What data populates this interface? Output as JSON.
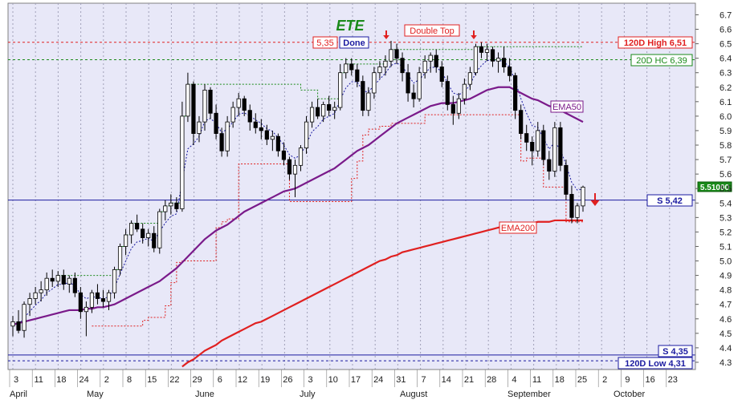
{
  "chart_data": {
    "type": "candlestick",
    "title": "ETE",
    "colors": {
      "background": "#e8e8f8",
      "up": "#ffffff",
      "down": "#000000",
      "ema50": "#7a1a8a",
      "ema200": "#e02020",
      "support": "#1a1aa0",
      "resistance": "#e02020",
      "hc20": "#1a8a1a",
      "trail": "#1a1aa0",
      "stop": "#e02020"
    },
    "ylim": [
      4.25,
      6.78
    ],
    "y_ticks": [
      "6.7",
      "6.6",
      "6.5",
      "6.4",
      "6.3",
      "6.2",
      "6.1",
      "6.0",
      "5.9",
      "5.8",
      "5.7",
      "5.6",
      "5.5",
      "5.4",
      "5.3",
      "5.2",
      "5.1",
      "5.0",
      "4.9",
      "4.8",
      "4.7",
      "4.6",
      "4.5",
      "4.4",
      "4.3"
    ],
    "x_day_ticks": [
      "3",
      "11",
      "18",
      "24",
      "2",
      "8",
      "15",
      "22",
      "29",
      "6",
      "12",
      "19",
      "26",
      "3",
      "10",
      "17",
      "24",
      "31",
      "7",
      "14",
      "21",
      "28",
      "4",
      "11",
      "18",
      "25",
      "2",
      "9",
      "16",
      "23"
    ],
    "x_month_labels": [
      "April",
      "May",
      "June",
      "July",
      "August",
      "September",
      "October"
    ],
    "last_price": "5.51000",
    "annotations": {
      "double_top": "Double Top",
      "done": "Done",
      "stop_price": "5,35",
      "high_120d": "120D High 6,51",
      "hc_20d": "20D HC 6,39",
      "support": "S 5,42",
      "support2": "S 4,35",
      "low_120d": "120D Low 4,31",
      "ema50": "EMA50",
      "ema200": "EMA200"
    },
    "levels": {
      "high_120d": 6.51,
      "hc_20d": 6.39,
      "support": 5.42,
      "support2": 4.35,
      "low_120d": 4.31
    },
    "candles": [
      [
        4.55,
        4.62,
        4.48,
        4.58
      ],
      [
        4.58,
        4.66,
        4.5,
        4.52
      ],
      [
        4.52,
        4.72,
        4.47,
        4.7
      ],
      [
        4.7,
        4.78,
        4.62,
        4.74
      ],
      [
        4.74,
        4.82,
        4.7,
        4.78
      ],
      [
        4.78,
        4.86,
        4.72,
        4.8
      ],
      [
        4.8,
        4.92,
        4.76,
        4.88
      ],
      [
        4.88,
        4.94,
        4.82,
        4.86
      ],
      [
        4.86,
        4.93,
        4.82,
        4.9
      ],
      [
        4.9,
        4.94,
        4.8,
        4.84
      ],
      [
        4.84,
        4.9,
        4.78,
        4.88
      ],
      [
        4.88,
        4.92,
        4.75,
        4.78
      ],
      [
        4.78,
        4.82,
        4.6,
        4.65
      ],
      [
        4.65,
        4.72,
        4.48,
        4.68
      ],
      [
        4.68,
        4.8,
        4.64,
        4.78
      ],
      [
        4.78,
        4.84,
        4.7,
        4.74
      ],
      [
        4.74,
        4.8,
        4.68,
        4.72
      ],
      [
        4.72,
        4.8,
        4.66,
        4.78
      ],
      [
        4.78,
        4.96,
        4.74,
        4.94
      ],
      [
        4.94,
        5.12,
        4.9,
        5.1
      ],
      [
        5.1,
        5.22,
        5.04,
        5.18
      ],
      [
        5.18,
        5.28,
        5.12,
        5.26
      ],
      [
        5.26,
        5.32,
        5.2,
        5.22
      ],
      [
        5.22,
        5.26,
        5.12,
        5.16
      ],
      [
        5.16,
        5.22,
        5.1,
        5.19
      ],
      [
        5.19,
        5.24,
        5.06,
        5.09
      ],
      [
        5.09,
        5.36,
        5.05,
        5.34
      ],
      [
        5.34,
        5.42,
        5.28,
        5.38
      ],
      [
        5.38,
        5.46,
        5.32,
        5.4
      ],
      [
        5.4,
        5.44,
        5.34,
        5.36
      ],
      [
        5.36,
        6.1,
        5.34,
        6.0
      ],
      [
        6.0,
        6.3,
        5.96,
        6.22
      ],
      [
        6.22,
        6.24,
        5.8,
        5.88
      ],
      [
        5.88,
        6.0,
        5.82,
        5.96
      ],
      [
        5.96,
        6.22,
        5.9,
        6.18
      ],
      [
        6.18,
        6.2,
        5.98,
        6.02
      ],
      [
        6.02,
        6.08,
        5.84,
        5.88
      ],
      [
        5.88,
        5.92,
        5.72,
        5.76
      ],
      [
        5.76,
        6.0,
        5.72,
        5.96
      ],
      [
        5.96,
        6.1,
        5.92,
        6.06
      ],
      [
        6.06,
        6.16,
        6.0,
        6.12
      ],
      [
        6.12,
        6.14,
        6.0,
        6.04
      ],
      [
        6.04,
        6.08,
        5.9,
        5.96
      ],
      [
        5.96,
        6.02,
        5.88,
        5.92
      ],
      [
        5.92,
        5.98,
        5.84,
        5.9
      ],
      [
        5.9,
        5.94,
        5.8,
        5.84
      ],
      [
        5.84,
        5.9,
        5.76,
        5.86
      ],
      [
        5.86,
        5.88,
        5.72,
        5.76
      ],
      [
        5.76,
        5.82,
        5.66,
        5.7
      ],
      [
        5.7,
        5.72,
        5.56,
        5.6
      ],
      [
        5.6,
        5.7,
        5.44,
        5.66
      ],
      [
        5.66,
        5.8,
        5.62,
        5.78
      ],
      [
        5.78,
        6.0,
        5.74,
        5.96
      ],
      [
        5.96,
        6.1,
        5.92,
        6.06
      ],
      [
        6.06,
        6.12,
        5.98,
        6.0
      ],
      [
        6.0,
        6.1,
        5.96,
        6.08
      ],
      [
        6.08,
        6.14,
        6.0,
        6.04
      ],
      [
        6.04,
        6.1,
        5.98,
        6.06
      ],
      [
        6.06,
        6.36,
        6.04,
        6.3
      ],
      [
        6.3,
        6.4,
        6.26,
        6.36
      ],
      [
        6.36,
        6.4,
        6.28,
        6.32
      ],
      [
        6.32,
        6.36,
        6.2,
        6.24
      ],
      [
        6.24,
        6.28,
        6.0,
        6.04
      ],
      [
        6.04,
        6.2,
        6.0,
        6.16
      ],
      [
        6.16,
        6.34,
        6.12,
        6.3
      ],
      [
        6.3,
        6.38,
        6.26,
        6.34
      ],
      [
        6.34,
        6.42,
        6.28,
        6.38
      ],
      [
        6.38,
        6.52,
        6.34,
        6.46
      ],
      [
        6.46,
        6.5,
        6.36,
        6.4
      ],
      [
        6.4,
        6.44,
        6.24,
        6.3
      ],
      [
        6.3,
        6.36,
        6.1,
        6.16
      ],
      [
        6.16,
        6.22,
        6.06,
        6.12
      ],
      [
        6.12,
        6.34,
        6.1,
        6.3
      ],
      [
        6.3,
        6.42,
        6.26,
        6.38
      ],
      [
        6.38,
        6.44,
        6.3,
        6.42
      ],
      [
        6.42,
        6.46,
        6.3,
        6.34
      ],
      [
        6.34,
        6.38,
        6.2,
        6.24
      ],
      [
        6.24,
        6.28,
        6.04,
        6.08
      ],
      [
        6.08,
        6.14,
        5.94,
        6.02
      ],
      [
        6.02,
        6.16,
        5.98,
        6.12
      ],
      [
        6.12,
        6.26,
        6.08,
        6.22
      ],
      [
        6.22,
        6.34,
        6.18,
        6.3
      ],
      [
        6.3,
        6.5,
        6.28,
        6.48
      ],
      [
        6.48,
        6.51,
        6.4,
        6.44
      ],
      [
        6.44,
        6.5,
        6.38,
        6.46
      ],
      [
        6.46,
        6.48,
        6.34,
        6.38
      ],
      [
        6.38,
        6.44,
        6.3,
        6.4
      ],
      [
        6.4,
        6.48,
        6.3,
        6.34
      ],
      [
        6.34,
        6.4,
        6.24,
        6.28
      ],
      [
        6.28,
        6.3,
        5.98,
        6.04
      ],
      [
        6.04,
        6.08,
        5.84,
        5.88
      ],
      [
        5.88,
        5.94,
        5.76,
        5.82
      ],
      [
        5.82,
        5.86,
        5.66,
        5.76
      ],
      [
        5.76,
        5.96,
        5.72,
        5.9
      ],
      [
        5.9,
        5.94,
        5.66,
        5.7
      ],
      [
        5.7,
        5.76,
        5.56,
        5.62
      ],
      [
        5.62,
        5.96,
        5.58,
        5.92
      ],
      [
        5.92,
        5.96,
        5.62,
        5.66
      ],
      [
        5.66,
        5.7,
        5.42,
        5.46
      ],
      [
        5.46,
        5.52,
        5.26,
        5.3
      ],
      [
        5.3,
        5.4,
        5.26,
        5.38
      ],
      [
        5.38,
        5.52,
        5.34,
        5.51
      ]
    ],
    "ema50": [
      4.56,
      4.57,
      4.58,
      4.59,
      4.6,
      4.61,
      4.62,
      4.63,
      4.64,
      4.65,
      4.66,
      4.66,
      4.66,
      4.67,
      4.67,
      4.68,
      4.68,
      4.69,
      4.7,
      4.72,
      4.74,
      4.76,
      4.78,
      4.8,
      4.82,
      4.84,
      4.86,
      4.89,
      4.92,
      4.95,
      4.99,
      5.03,
      5.07,
      5.11,
      5.15,
      5.18,
      5.21,
      5.23,
      5.25,
      5.28,
      5.31,
      5.34,
      5.36,
      5.38,
      5.4,
      5.42,
      5.44,
      5.46,
      5.48,
      5.49,
      5.5,
      5.52,
      5.54,
      5.56,
      5.58,
      5.6,
      5.62,
      5.64,
      5.67,
      5.7,
      5.73,
      5.76,
      5.78,
      5.8,
      5.83,
      5.86,
      5.89,
      5.92,
      5.95,
      5.97,
      5.99,
      6.01,
      6.03,
      6.05,
      6.07,
      6.08,
      6.09,
      6.09,
      6.09,
      6.1,
      6.11,
      6.12,
      6.14,
      6.16,
      6.18,
      6.19,
      6.2,
      6.2,
      6.2,
      6.18,
      6.16,
      6.14,
      6.12,
      6.11,
      6.09,
      6.07,
      6.06,
      6.04,
      6.02,
      6.0,
      5.98,
      5.96
    ],
    "ema200": [
      3.5,
      3.52,
      3.55,
      3.58,
      3.6,
      3.63,
      3.66,
      3.68,
      3.71,
      3.73,
      3.76,
      3.79,
      3.81,
      3.84,
      3.86,
      3.89,
      3.91,
      3.94,
      3.97,
      3.99,
      4.02,
      4.04,
      4.07,
      4.09,
      4.12,
      4.14,
      4.17,
      4.19,
      4.22,
      4.24,
      4.27,
      4.3,
      4.32,
      4.35,
      4.38,
      4.4,
      4.42,
      4.45,
      4.47,
      4.49,
      4.51,
      4.53,
      4.55,
      4.57,
      4.58,
      4.6,
      4.62,
      4.64,
      4.66,
      4.68,
      4.7,
      4.72,
      4.74,
      4.76,
      4.78,
      4.8,
      4.82,
      4.84,
      4.86,
      4.88,
      4.9,
      4.92,
      4.94,
      4.96,
      4.98,
      5.0,
      5.01,
      5.03,
      5.04,
      5.06,
      5.07,
      5.08,
      5.09,
      5.1,
      5.11,
      5.12,
      5.13,
      5.14,
      5.15,
      5.16,
      5.17,
      5.18,
      5.19,
      5.2,
      5.21,
      5.22,
      5.23,
      5.24,
      5.24,
      5.25,
      5.25,
      5.26,
      5.26,
      5.27,
      5.27,
      5.27,
      5.28,
      5.28,
      5.28,
      5.28,
      5.28,
      5.28
    ]
  }
}
